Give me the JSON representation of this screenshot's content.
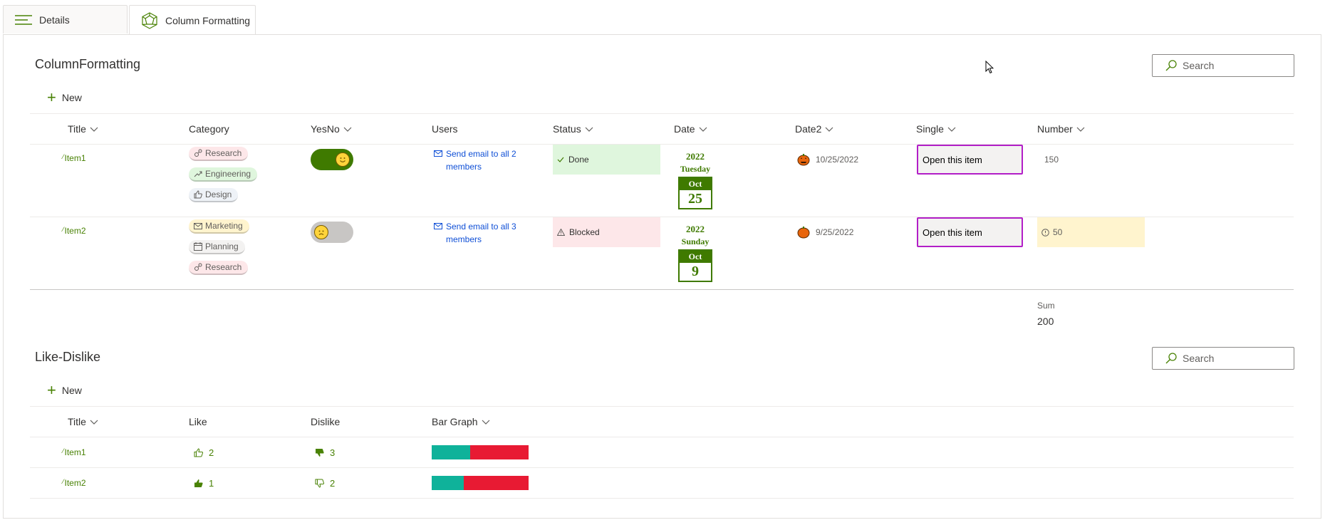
{
  "tabs": [
    {
      "label": "Details",
      "icon": "hamburger-icon"
    },
    {
      "label": "Column Formatting",
      "icon": "webpart-icon"
    }
  ],
  "list1": {
    "title": "ColumnFormatting",
    "search_placeholder": "Search",
    "new_label": "New",
    "columns": {
      "title": "Title",
      "category": "Category",
      "yesno": "YesNo",
      "users": "Users",
      "status": "Status",
      "date": "Date",
      "date2": "Date2",
      "single": "Single",
      "number": "Number"
    },
    "rows": [
      {
        "title": "Item1",
        "categories": [
          {
            "label": "Research",
            "icon": "research-icon"
          },
          {
            "label": "Engineering",
            "icon": "trend-icon"
          },
          {
            "label": "Design",
            "icon": "like-icon"
          }
        ],
        "yesno": true,
        "users_link": "Send email to all 2 members",
        "status": "Done",
        "date_year": "2022",
        "date_weekday": "Tuesday",
        "date_month": "Oct",
        "date_day": "25",
        "date2": "10/25/2022",
        "single_button": "Open this item",
        "number": "150"
      },
      {
        "title": "Item2",
        "categories": [
          {
            "label": "Marketing",
            "icon": "mail-icon"
          },
          {
            "label": "Planning",
            "icon": "calendar-icon"
          },
          {
            "label": "Research",
            "icon": "research-icon"
          }
        ],
        "yesno": false,
        "users_link": "Send email to all 3 members",
        "status": "Blocked",
        "date_year": "2022",
        "date_weekday": "Sunday",
        "date_month": "Oct",
        "date_day": "9",
        "date2": "9/25/2022",
        "single_button": "Open this item",
        "number": "50"
      }
    ],
    "sum_label": "Sum",
    "sum_value": "200"
  },
  "list2": {
    "title": "Like-Dislike",
    "search_placeholder": "Search",
    "new_label": "New",
    "columns": {
      "title": "Title",
      "like": "Like",
      "dislike": "Dislike",
      "bar": "Bar Graph"
    },
    "rows": [
      {
        "title": "Item1",
        "like": "2",
        "dislike": "3",
        "like_share": 0.4
      },
      {
        "title": "Item2",
        "like": "1",
        "dislike": "2",
        "like_share": 0.33
      }
    ]
  },
  "colors": {
    "accent": "#498205",
    "done_bg": "#dff6dd",
    "blocked_bg": "#fde7e9",
    "warn_bg": "#fff4ce",
    "single_border": "#b21ec7",
    "bar_like": "#0fb29a",
    "bar_dislike": "#e81a33"
  }
}
